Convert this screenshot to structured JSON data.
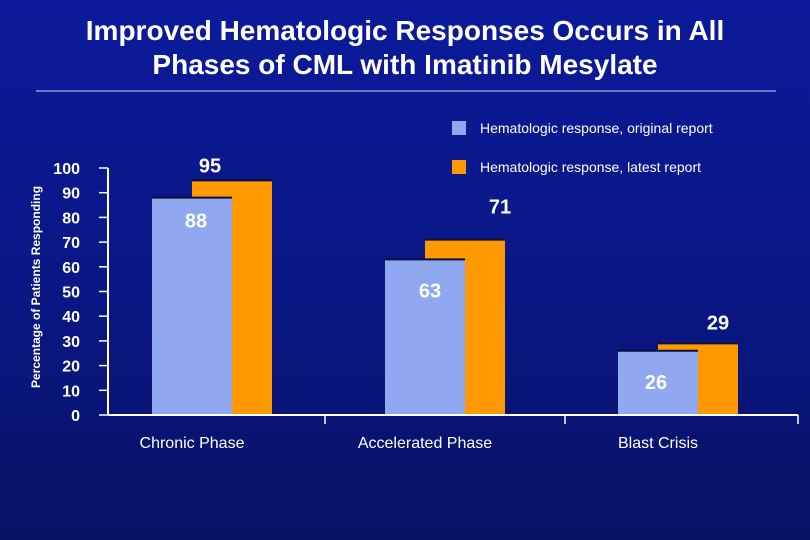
{
  "title": {
    "line1": "Improved Hematologic Responses Occurs in All",
    "line2": "Phases of CML with Imatinib Mesylate"
  },
  "chart_data": {
    "type": "bar",
    "title": "Improved Hematologic Responses Occurs in All Phases of CML with Imatinib Mesylate",
    "ylabel": "Percentage of Patients Responding",
    "xlabel": "",
    "ylim": [
      0,
      100
    ],
    "yticks": [
      0,
      10,
      20,
      30,
      40,
      50,
      60,
      70,
      80,
      90,
      100
    ],
    "categories": [
      "Chronic Phase",
      "Accelerated Phase",
      "Blast Crisis"
    ],
    "series": [
      {
        "name": "Hematologic response, original report",
        "values": [
          88,
          63,
          26
        ],
        "color": "#8fa8ef"
      },
      {
        "name": "Hematologic response, latest report",
        "values": [
          95,
          71,
          29
        ],
        "color": "#ff9900"
      }
    ],
    "legend": "top-right",
    "grid": false
  },
  "colors": {
    "axis": "#ffffff",
    "text": "#ffffff",
    "label_original": "#ffffff",
    "label_latest": "#ffffff"
  }
}
